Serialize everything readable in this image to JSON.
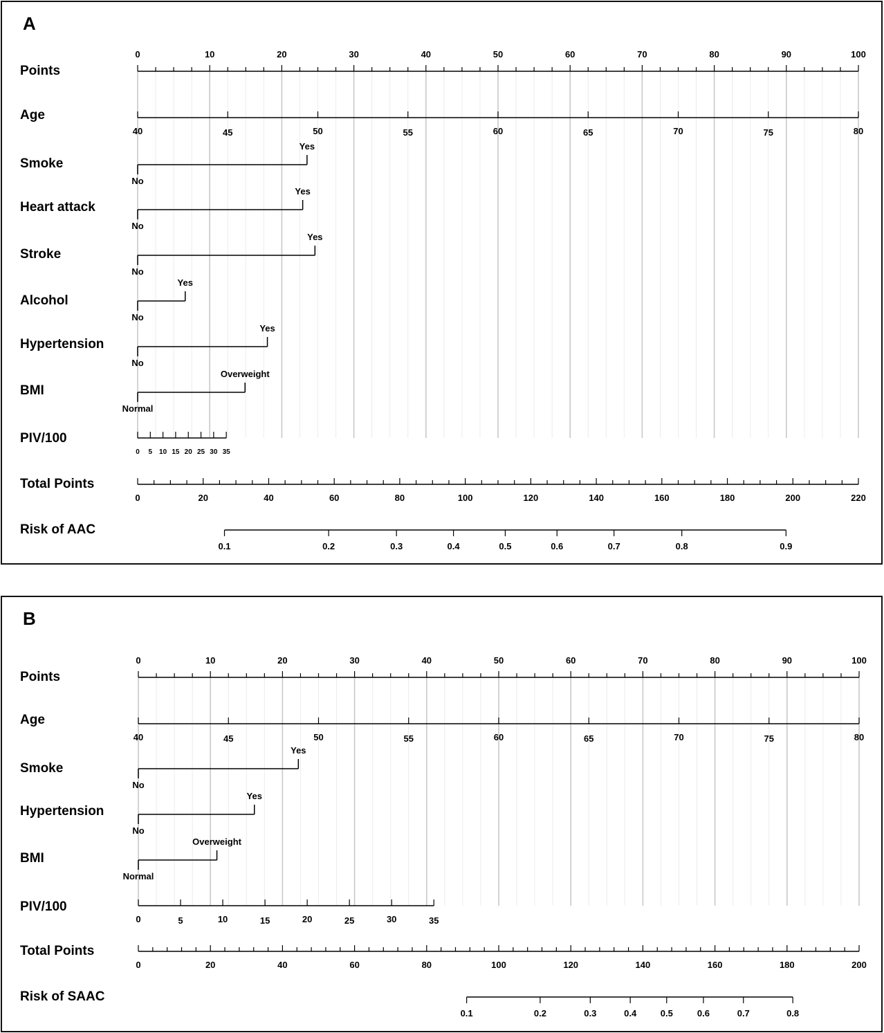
{
  "chart_data": [
    {
      "type": "nomogram",
      "panel_label": "A",
      "points_range": [
        0,
        100
      ],
      "points_ticks": [
        0,
        10,
        20,
        30,
        40,
        50,
        60,
        70,
        80,
        90,
        100
      ],
      "rows": [
        {
          "label": "Points",
          "kind": "points"
        },
        {
          "label": "Age",
          "kind": "continuous",
          "range": [
            40,
            80
          ],
          "points": [
            0,
            100
          ],
          "tick_values": [
            40,
            45,
            50,
            55,
            60,
            65,
            70,
            75,
            80
          ],
          "labels_below": true
        },
        {
          "label": "Smoke",
          "kind": "binary",
          "levels": [
            "No",
            "Yes"
          ],
          "points": [
            0,
            23.5
          ]
        },
        {
          "label": "Heart attack",
          "kind": "binary",
          "levels": [
            "No",
            "Yes"
          ],
          "points": [
            0,
            22.9
          ]
        },
        {
          "label": "Stroke",
          "kind": "binary",
          "levels": [
            "No",
            "Yes"
          ],
          "points": [
            0,
            24.6
          ]
        },
        {
          "label": "Alcohol",
          "kind": "binary",
          "levels": [
            "No",
            "Yes"
          ],
          "points": [
            0,
            6.6
          ]
        },
        {
          "label": "Hypertension",
          "kind": "binary",
          "levels": [
            "No",
            "Yes"
          ],
          "points": [
            0,
            18.0
          ]
        },
        {
          "label": "BMI",
          "kind": "binary",
          "levels": [
            "Normal",
            "Overweight"
          ],
          "points": [
            0,
            14.9
          ]
        },
        {
          "label": "PIV/100",
          "kind": "continuous",
          "range": [
            0,
            35
          ],
          "points": [
            0,
            12.3
          ],
          "tick_values": [
            0,
            5,
            10,
            15,
            20,
            25,
            30,
            35
          ],
          "labels_below": true,
          "small_labels": true
        },
        {
          "label": "Total Points",
          "kind": "total",
          "range": [
            0,
            220
          ],
          "tick_values": [
            0,
            20,
            40,
            60,
            80,
            100,
            120,
            140,
            160,
            180,
            200,
            220
          ],
          "minor_step": 5
        },
        {
          "label": "Risk of AAC",
          "kind": "risk",
          "values": [
            0.1,
            0.2,
            0.3,
            0.4,
            0.5,
            0.6,
            0.7,
            0.8,
            0.9
          ],
          "total_points": [
            26.5,
            58.3,
            79.0,
            96.4,
            112.2,
            128.0,
            145.4,
            166.1,
            197.9
          ]
        }
      ]
    },
    {
      "type": "nomogram",
      "panel_label": "B",
      "points_range": [
        0,
        100
      ],
      "points_ticks": [
        0,
        10,
        20,
        30,
        40,
        50,
        60,
        70,
        80,
        90,
        100
      ],
      "rows": [
        {
          "label": "Points",
          "kind": "points"
        },
        {
          "label": "Age",
          "kind": "continuous",
          "range": [
            40,
            80
          ],
          "points": [
            0,
            100
          ],
          "tick_values": [
            40,
            45,
            50,
            55,
            60,
            65,
            70,
            75,
            80
          ],
          "labels_below": true
        },
        {
          "label": "Smoke",
          "kind": "binary",
          "levels": [
            "No",
            "Yes"
          ],
          "points": [
            0,
            22.2
          ]
        },
        {
          "label": "Hypertension",
          "kind": "binary",
          "levels": [
            "No",
            "Yes"
          ],
          "points": [
            0,
            16.1
          ]
        },
        {
          "label": "BMI",
          "kind": "binary",
          "levels": [
            "Normal",
            "Overweight"
          ],
          "points": [
            0,
            10.9
          ]
        },
        {
          "label": "PIV/100",
          "kind": "continuous",
          "range": [
            0,
            35
          ],
          "points": [
            0,
            41.0
          ],
          "tick_values": [
            0,
            5,
            10,
            15,
            20,
            25,
            30,
            35
          ],
          "labels_below": true
        },
        {
          "label": "Total Points",
          "kind": "total",
          "range": [
            0,
            200
          ],
          "tick_values": [
            0,
            20,
            40,
            60,
            80,
            100,
            120,
            140,
            160,
            180,
            200
          ],
          "minor_step": 4
        },
        {
          "label": "Risk of SAAC",
          "kind": "risk",
          "values": [
            0.1,
            0.2,
            0.3,
            0.4,
            0.5,
            0.6,
            0.7,
            0.8
          ],
          "total_points": [
            91.1,
            111.5,
            125.4,
            136.5,
            146.6,
            156.8,
            167.9,
            181.6
          ]
        }
      ]
    }
  ]
}
